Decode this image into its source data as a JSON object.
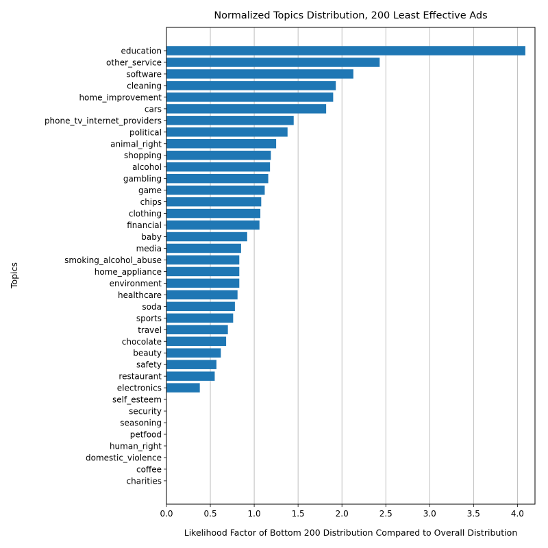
{
  "chart_data": {
    "type": "bar",
    "orientation": "horizontal",
    "title": "Normalized Topics Distribution, 200 Least Effective Ads",
    "xlabel": "Likelihood Factor of Bottom 200 Distribution Compared to Overall Distribution",
    "ylabel": "Topics",
    "xlim": [
      0,
      4.2
    ],
    "xticks": [
      "0.0",
      "0.5",
      "1.0",
      "1.5",
      "2.0",
      "2.5",
      "3.0",
      "3.5",
      "4.0"
    ],
    "grid": "x",
    "bar_color": "#1f77b4",
    "categories": [
      "education",
      "other_service",
      "software",
      "cleaning",
      "home_improvement",
      "cars",
      "phone_tv_internet_providers",
      "political",
      "animal_right",
      "shopping",
      "alcohol",
      "gambling",
      "game",
      "chips",
      "clothing",
      "financial",
      "baby",
      "media",
      "smoking_alcohol_abuse",
      "home_appliance",
      "environment",
      "healthcare",
      "soda",
      "sports",
      "travel",
      "chocolate",
      "beauty",
      "safety",
      "restaurant",
      "electronics",
      "self_esteem",
      "security",
      "seasoning",
      "petfood",
      "human_right",
      "domestic_violence",
      "coffee",
      "charities"
    ],
    "values": [
      4.09,
      2.43,
      2.13,
      1.93,
      1.9,
      1.82,
      1.45,
      1.38,
      1.25,
      1.19,
      1.18,
      1.16,
      1.12,
      1.08,
      1.07,
      1.06,
      0.92,
      0.85,
      0.83,
      0.83,
      0.83,
      0.81,
      0.78,
      0.76,
      0.7,
      0.68,
      0.62,
      0.57,
      0.55,
      0.38,
      0,
      0,
      0,
      0,
      0,
      0,
      0,
      0
    ]
  }
}
